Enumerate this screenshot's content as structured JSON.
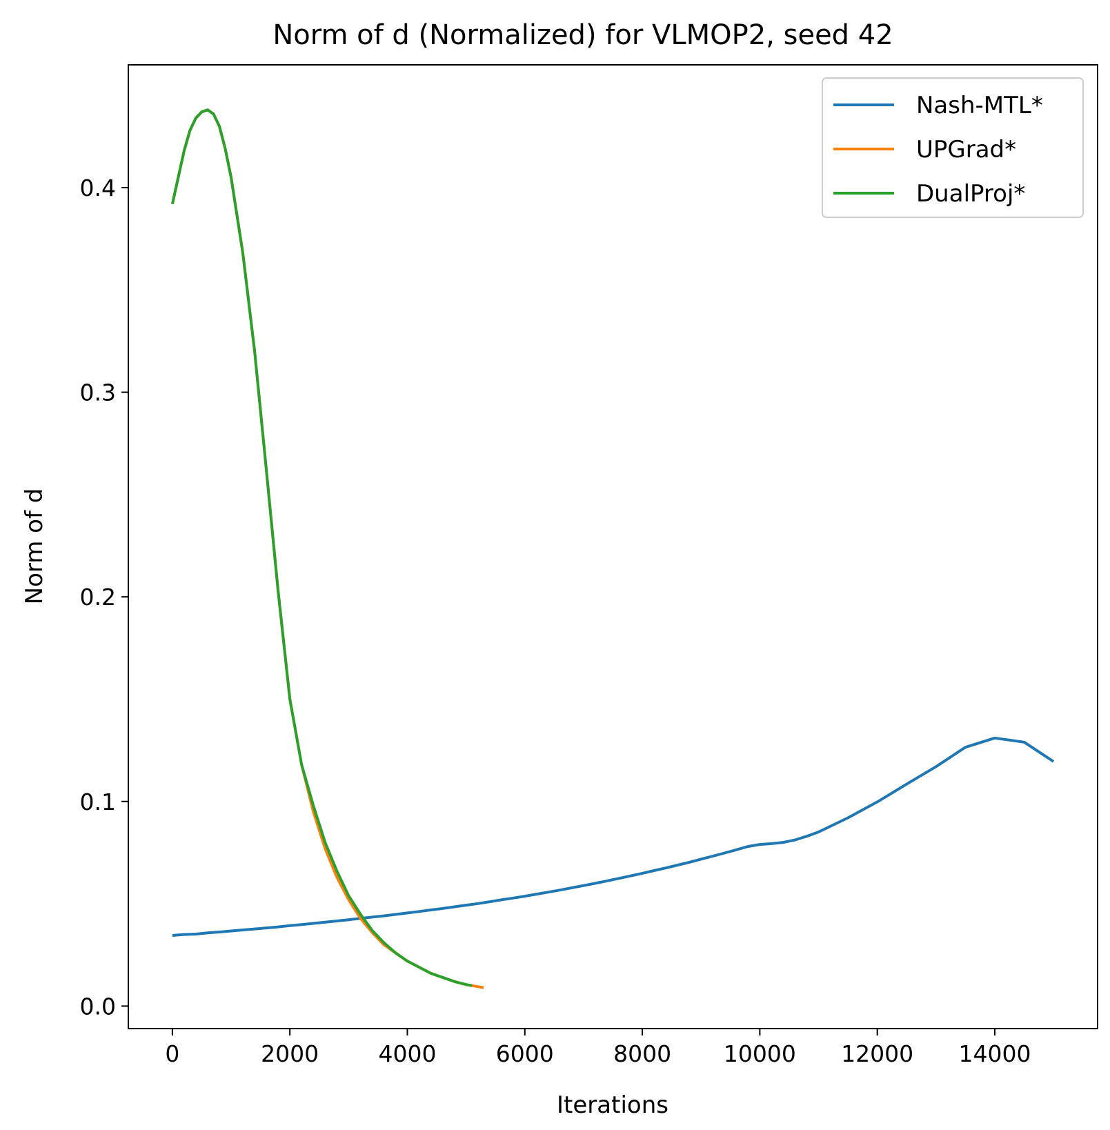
{
  "chart_data": {
    "type": "line",
    "title": "Norm of d (Normalized) for VLMOP2, seed 42",
    "xlabel": "Iterations",
    "ylabel": "Norm of d",
    "xlim": [
      -750,
      15750
    ],
    "ylim": [
      -0.011,
      0.46
    ],
    "xticks": [
      0,
      2000,
      4000,
      6000,
      8000,
      10000,
      12000,
      14000
    ],
    "xtick_labels": [
      "0",
      "2000",
      "4000",
      "6000",
      "8000",
      "10000",
      "12000",
      "14000"
    ],
    "yticks": [
      0.0,
      0.1,
      0.2,
      0.3,
      0.4
    ],
    "ytick_labels": [
      "0.0",
      "0.1",
      "0.2",
      "0.3",
      "0.4"
    ],
    "grid": false,
    "legend_position": "top-right",
    "series": [
      {
        "name": "Nash-MTL*",
        "color": "#1f77b4",
        "x": [
          0,
          200,
          400,
          600,
          800,
          1000,
          1200,
          1400,
          1600,
          1800,
          2000,
          2200,
          2400,
          2600,
          2800,
          3000,
          3200,
          3400,
          3600,
          3800,
          4000,
          4200,
          4400,
          4600,
          4800,
          5000,
          5200,
          5400,
          5600,
          5800,
          6000,
          6200,
          6400,
          6600,
          6800,
          7000,
          7200,
          7400,
          7600,
          7800,
          8000,
          8200,
          8400,
          8600,
          8800,
          9000,
          9200,
          9400,
          9600,
          9800,
          10000,
          10200,
          10400,
          10600,
          10800,
          11000,
          11500,
          12000,
          12500,
          13000,
          13500,
          14000,
          14500,
          15000
        ],
        "values": [
          0.0345,
          0.035,
          0.0352,
          0.0358,
          0.0362,
          0.0367,
          0.0372,
          0.0377,
          0.0382,
          0.0387,
          0.0393,
          0.0398,
          0.0404,
          0.041,
          0.0416,
          0.0422,
          0.0428,
          0.0435,
          0.0441,
          0.0448,
          0.0455,
          0.0462,
          0.047,
          0.0477,
          0.0485,
          0.0493,
          0.0501,
          0.051,
          0.0519,
          0.0528,
          0.0537,
          0.0547,
          0.0557,
          0.0567,
          0.0578,
          0.0589,
          0.06,
          0.0612,
          0.0624,
          0.0636,
          0.0649,
          0.0662,
          0.0675,
          0.0689,
          0.0703,
          0.0718,
          0.0733,
          0.0748,
          0.0764,
          0.078,
          0.079,
          0.0794,
          0.08,
          0.0812,
          0.083,
          0.0851,
          0.092,
          0.0998,
          0.1085,
          0.117,
          0.1265,
          0.131,
          0.129,
          0.1195
        ]
      },
      {
        "name": "UPGrad*",
        "color": "#ff7f0e",
        "x": [
          0,
          100,
          200,
          300,
          400,
          500,
          600,
          700,
          800,
          900,
          1000,
          1200,
          1400,
          1600,
          1800,
          2000,
          2200,
          2400,
          2600,
          2800,
          3000,
          3200,
          3400,
          3600,
          3800,
          4000,
          4200,
          4400,
          4600,
          4800,
          5000,
          5200,
          5300
        ],
        "values": [
          0.392,
          0.405,
          0.418,
          0.428,
          0.434,
          0.437,
          0.438,
          0.436,
          0.43,
          0.419,
          0.405,
          0.368,
          0.32,
          0.262,
          0.203,
          0.15,
          0.118,
          0.095,
          0.077,
          0.063,
          0.052,
          0.043,
          0.036,
          0.03,
          0.026,
          0.022,
          0.019,
          0.016,
          0.014,
          0.012,
          0.0105,
          0.0095,
          0.009
        ]
      },
      {
        "name": "DualProj*",
        "color": "#2ca02c",
        "x": [
          0,
          100,
          200,
          300,
          400,
          500,
          600,
          700,
          800,
          900,
          1000,
          1200,
          1400,
          1600,
          1800,
          2000,
          2200,
          2400,
          2600,
          2800,
          3000,
          3200,
          3400,
          3600,
          3800,
          4000,
          4200,
          4400,
          4600,
          4800,
          5000,
          5100
        ],
        "values": [
          0.392,
          0.405,
          0.418,
          0.428,
          0.434,
          0.437,
          0.438,
          0.436,
          0.43,
          0.419,
          0.405,
          0.368,
          0.32,
          0.262,
          0.203,
          0.15,
          0.118,
          0.098,
          0.08,
          0.066,
          0.054,
          0.045,
          0.037,
          0.031,
          0.026,
          0.022,
          0.019,
          0.016,
          0.014,
          0.012,
          0.0105,
          0.01
        ]
      }
    ]
  }
}
